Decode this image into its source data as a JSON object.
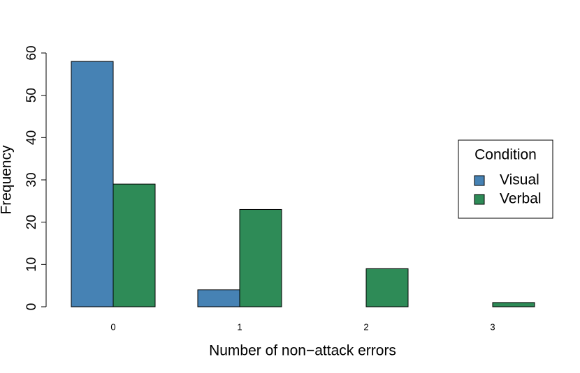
{
  "chart_data": {
    "type": "bar",
    "categories": [
      "0",
      "1",
      "2",
      "3"
    ],
    "series": [
      {
        "name": "Visual",
        "color": "#4682b4",
        "values": [
          58,
          4,
          0,
          0
        ]
      },
      {
        "name": "Verbal",
        "color": "#2e8b57",
        "values": [
          29,
          23,
          9,
          1
        ]
      }
    ],
    "ylim": [
      0,
      60
    ],
    "yticks": [
      0,
      10,
      20,
      30,
      40,
      50,
      60
    ],
    "x_label": "Number of non−attack errors",
    "y_label": "Frequency",
    "legend_title": "Condition",
    "legend": "right"
  }
}
